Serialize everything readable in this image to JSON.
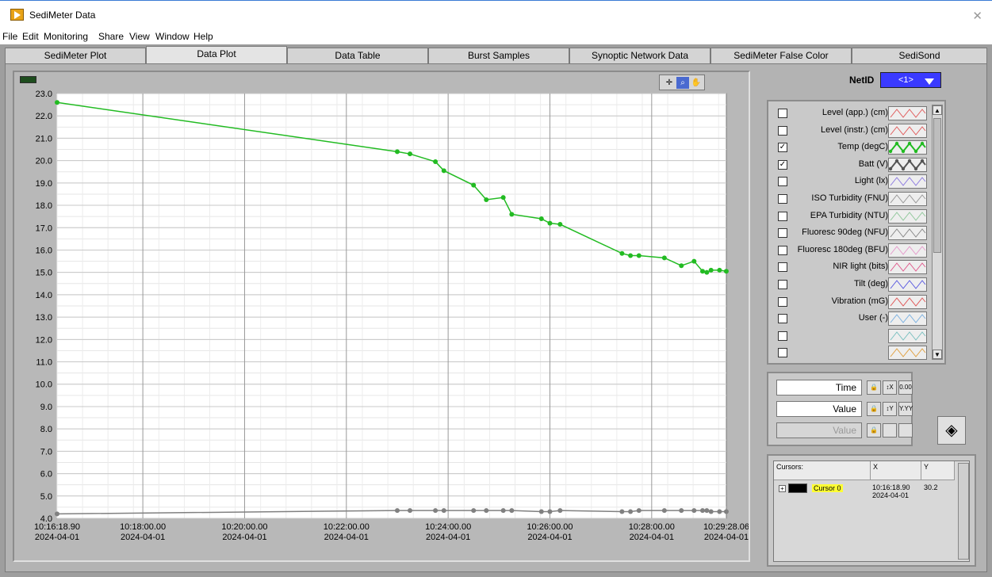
{
  "window": {
    "title": "SediMeter Data",
    "close_glyph": "✕"
  },
  "menu": [
    "File",
    "Edit",
    "Monitoring",
    "Share",
    "View",
    "Window",
    "Help"
  ],
  "tabs": [
    "SediMeter Plot",
    "Data Plot",
    "Data Table",
    "Burst Samples",
    "Synoptic Network Data",
    "SediMeter False Color",
    "SediSond"
  ],
  "active_tab": 1,
  "netid": {
    "label": "NetID",
    "value": "<1>"
  },
  "legend": [
    {
      "label": "Level (app.) (cm)",
      "checked": false,
      "color": "#e05a5a"
    },
    {
      "label": "Level (instr.) (cm)",
      "checked": false,
      "color": "#e05a5a"
    },
    {
      "label": "Temp (degC)",
      "checked": true,
      "color": "#22bb22"
    },
    {
      "label": "Batt (V)",
      "checked": true,
      "color": "#555555"
    },
    {
      "label": "Light (lx)",
      "checked": false,
      "color": "#8c7ae0"
    },
    {
      "label": "ISO Turbidity (FNU)",
      "checked": false,
      "color": "#999999"
    },
    {
      "label": "EPA Turbidity (NTU)",
      "checked": false,
      "color": "#8fc79a"
    },
    {
      "label": "Fluoresc 90deg (NFU)",
      "checked": false,
      "color": "#888888"
    },
    {
      "label": "Fluoresc 180deg (BFU)",
      "checked": false,
      "color": "#e59acb"
    },
    {
      "label": "NIR light (bits)",
      "checked": false,
      "color": "#e05a8c"
    },
    {
      "label": "Tilt (deg)",
      "checked": false,
      "color": "#5a5ae0"
    },
    {
      "label": "Vibration (mG)",
      "checked": false,
      "color": "#e05a5a"
    },
    {
      "label": "User (-)",
      "checked": false,
      "color": "#7ab0e0"
    },
    {
      "label": "",
      "checked": false,
      "color": "#7ac0c0"
    },
    {
      "label": "",
      "checked": false,
      "color": "#e0a040"
    }
  ],
  "scale": {
    "time_label": "Time",
    "value_label": "Value",
    "value2_label": "Value",
    "x_fmt": "0.00",
    "y_fmt": "Y.YY"
  },
  "cursors": {
    "headers": [
      "Cursors:",
      "X",
      "Y"
    ],
    "row": {
      "name": "Cursor 0",
      "x_time": "10:16:18.90",
      "x_date": "2024-04-01",
      "y": "30.2"
    }
  },
  "chart_data": {
    "type": "line",
    "ylim": [
      4.0,
      23.0
    ],
    "y_ticks": [
      "23.0",
      "22.0",
      "21.0",
      "20.0",
      "19.0",
      "18.0",
      "17.0",
      "16.0",
      "15.0",
      "14.0",
      "13.0",
      "12.0",
      "11.0",
      "10.0",
      "9.0",
      "8.0",
      "7.0",
      "6.0",
      "5.0",
      "4.0"
    ],
    "xlim": [
      "10:16:18.90",
      "10:29:28.06"
    ],
    "x_ticks": [
      {
        "t": "10:16:18.90",
        "d": "2024-04-01"
      },
      {
        "t": "10:18:00.00",
        "d": "2024-04-01"
      },
      {
        "t": "10:20:00.00",
        "d": "2024-04-01"
      },
      {
        "t": "10:22:00.00",
        "d": "2024-04-01"
      },
      {
        "t": "10:24:00.00",
        "d": "2024-04-01"
      },
      {
        "t": "10:26:00.00",
        "d": "2024-04-01"
      },
      {
        "t": "10:28:00.00",
        "d": "2024-04-01"
      },
      {
        "t": "10:29:28.06",
        "d": "2024-04-01"
      }
    ],
    "series": [
      {
        "name": "Temp (degC)",
        "color": "#22bb22",
        "x": [
          "10:16:18.9",
          "10:23:00",
          "10:23:15",
          "10:23:45",
          "10:23:55",
          "10:24:30",
          "10:24:45",
          "10:25:05",
          "10:25:15",
          "10:25:50",
          "10:26:00",
          "10:26:12",
          "10:27:25",
          "10:27:35",
          "10:27:45",
          "10:28:15",
          "10:28:35",
          "10:28:50",
          "10:29:00",
          "10:29:05",
          "10:29:10",
          "10:29:20",
          "10:29:28"
        ],
        "values": [
          22.6,
          20.4,
          20.3,
          19.95,
          19.55,
          18.9,
          18.25,
          18.35,
          17.6,
          17.4,
          17.2,
          17.15,
          15.85,
          15.75,
          15.75,
          15.65,
          15.3,
          15.5,
          15.05,
          15.0,
          15.1,
          15.1,
          15.05
        ]
      },
      {
        "name": "Batt (V)",
        "color": "#808080",
        "x": [
          "10:16:18.9",
          "10:23:00",
          "10:23:15",
          "10:23:45",
          "10:23:55",
          "10:24:30",
          "10:24:45",
          "10:25:05",
          "10:25:15",
          "10:25:50",
          "10:26:00",
          "10:26:12",
          "10:27:25",
          "10:27:35",
          "10:27:45",
          "10:28:15",
          "10:28:35",
          "10:28:50",
          "10:29:00",
          "10:29:05",
          "10:29:10",
          "10:29:20",
          "10:29:28"
        ],
        "values": [
          4.2,
          4.35,
          4.35,
          4.35,
          4.35,
          4.35,
          4.35,
          4.35,
          4.35,
          4.3,
          4.3,
          4.35,
          4.3,
          4.3,
          4.35,
          4.35,
          4.35,
          4.35,
          4.35,
          4.35,
          4.3,
          4.3,
          4.3
        ]
      }
    ]
  }
}
